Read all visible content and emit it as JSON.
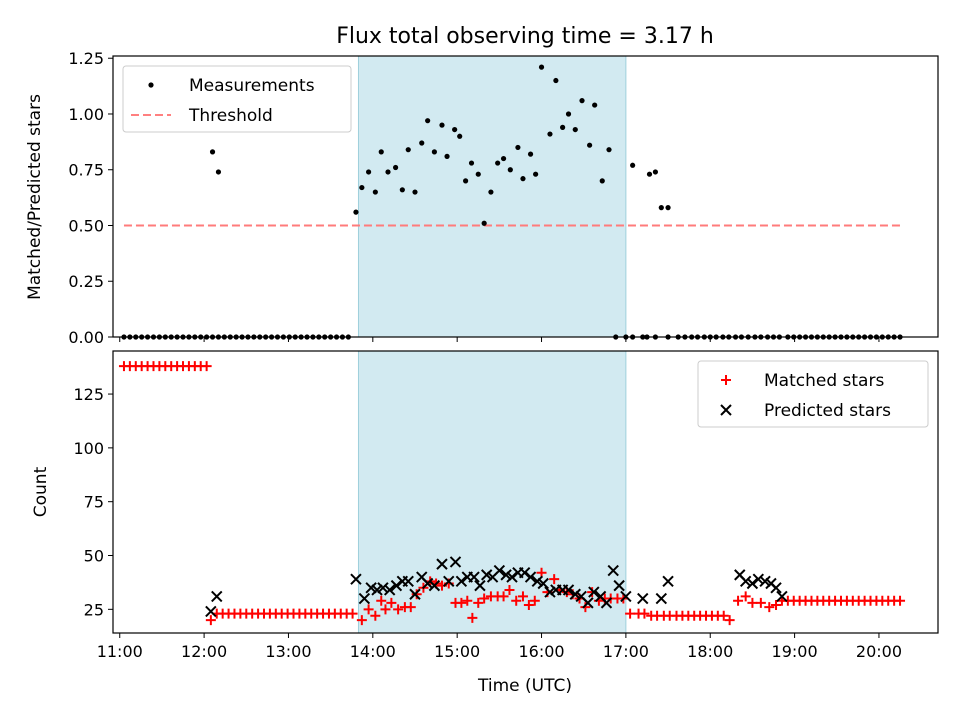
{
  "chart_data": [
    {
      "type": "scatter",
      "title": "Flux total observing time = 3.17 h",
      "ylabel": "Matched/Predicted stars",
      "xlabel": "",
      "xlim": [
        10.92,
        20.7
      ],
      "ylim": [
        0,
        1.26
      ],
      "yticks": [
        0.0,
        0.25,
        0.5,
        0.75,
        1.0,
        1.25
      ],
      "ytick_labels": [
        "0.00",
        "0.25",
        "0.50",
        "0.75",
        "1.00",
        "1.25"
      ],
      "shaded_region": [
        13.83,
        17.0
      ],
      "shade_color": "#add8e6",
      "legend_position": "upper left",
      "legend": [
        {
          "label": "Measurements",
          "marker": "dot",
          "color": "#000000"
        },
        {
          "label": "Threshold",
          "marker": "dashed-line",
          "color": "#ff8080"
        }
      ],
      "threshold": {
        "name": "Threshold",
        "value": 0.5,
        "x_range": [
          11.05,
          20.25
        ]
      },
      "series": [
        {
          "name": "Measurements",
          "marker": "dot",
          "color": "#000000",
          "x": [
            11.05,
            11.12,
            11.19,
            11.26,
            11.33,
            11.4,
            11.47,
            11.54,
            11.61,
            11.68,
            11.75,
            11.82,
            11.89,
            11.96,
            12.03,
            12.1,
            12.17,
            12.24,
            12.31,
            12.38,
            12.45,
            12.52,
            12.59,
            12.66,
            12.73,
            12.8,
            12.87,
            12.94,
            13.01,
            13.08,
            13.15,
            13.22,
            13.29,
            13.36,
            13.43,
            13.5,
            13.57,
            13.64,
            13.71,
            13.8,
            13.87,
            13.95,
            14.03,
            14.1,
            14.18,
            14.27,
            14.35,
            14.42,
            14.5,
            14.58,
            14.65,
            14.73,
            14.82,
            14.88,
            14.97,
            15.03,
            15.1,
            15.17,
            15.25,
            15.32,
            15.4,
            15.48,
            15.55,
            15.63,
            15.72,
            15.78,
            15.87,
            15.93,
            16.0,
            16.1,
            16.17,
            16.25,
            16.32,
            16.4,
            16.48,
            16.57,
            16.63,
            16.72,
            16.8,
            16.88,
            17.0,
            17.08,
            17.2,
            17.25,
            17.35,
            17.5,
            17.62,
            17.7,
            17.78,
            17.85,
            17.93,
            18.0,
            18.07,
            18.15,
            18.22,
            18.3,
            18.37,
            18.45,
            18.53,
            18.6,
            18.68,
            18.75,
            18.82,
            18.92,
            18.99,
            19.06,
            19.13,
            19.2,
            19.27,
            19.34,
            19.41,
            19.48,
            19.55,
            19.62,
            19.69,
            19.76,
            19.83,
            19.9,
            19.97,
            20.04,
            20.11,
            20.18,
            20.25,
            12.1,
            12.17,
            17.08,
            17.28,
            17.35,
            17.42,
            17.5
          ],
          "y": [
            0,
            0,
            0,
            0,
            0,
            0,
            0,
            0,
            0,
            0,
            0,
            0,
            0,
            0,
            0,
            0,
            0,
            0,
            0,
            0,
            0,
            0,
            0,
            0,
            0,
            0,
            0,
            0,
            0,
            0,
            0,
            0,
            0,
            0,
            0,
            0,
            0,
            0,
            0,
            0.56,
            0.67,
            0.74,
            0.65,
            0.83,
            0.74,
            0.76,
            0.66,
            0.84,
            0.65,
            0.87,
            0.97,
            0.83,
            0.95,
            0.81,
            0.93,
            0.9,
            0.7,
            0.78,
            0.73,
            0.51,
            0.65,
            0.78,
            0.8,
            0.75,
            0.85,
            0.71,
            0.82,
            0.73,
            1.21,
            0.91,
            1.15,
            0.94,
            1.0,
            0.93,
            1.06,
            0.86,
            1.04,
            0.7,
            0.84,
            0,
            0,
            0,
            0,
            0,
            0,
            0,
            0,
            0,
            0,
            0,
            0,
            0,
            0,
            0,
            0,
            0,
            0,
            0,
            0,
            0,
            0,
            0,
            0,
            0,
            0,
            0,
            0,
            0,
            0,
            0,
            0,
            0,
            0,
            0,
            0,
            0,
            0,
            0,
            0,
            0,
            0,
            0,
            0,
            0.83,
            0.74,
            0.77,
            0.73,
            0.74,
            0.58,
            0.58
          ]
        }
      ]
    },
    {
      "type": "scatter",
      "title": "",
      "xlabel": "Time (UTC)",
      "ylabel": "Count",
      "xlim": [
        10.92,
        20.7
      ],
      "ylim": [
        14,
        145
      ],
      "yticks": [
        25,
        50,
        75,
        100,
        125
      ],
      "ytick_labels": [
        "25",
        "50",
        "75",
        "100",
        "125"
      ],
      "xticks": [
        11,
        12,
        13,
        14,
        15,
        16,
        17,
        18,
        19,
        20
      ],
      "xtick_labels": [
        "11:00",
        "12:00",
        "13:00",
        "14:00",
        "15:00",
        "16:00",
        "17:00",
        "18:00",
        "19:00",
        "20:00"
      ],
      "shaded_region": [
        13.83,
        17.0
      ],
      "shade_color": "#add8e6",
      "legend_position": "upper right",
      "legend": [
        {
          "label": "Matched stars",
          "marker": "plus",
          "color": "#ff0000"
        },
        {
          "label": "Predicted stars",
          "marker": "x",
          "color": "#000000"
        }
      ],
      "series": [
        {
          "name": "Matched stars",
          "marker": "plus",
          "color": "#ff0000",
          "x": [
            11.05,
            11.12,
            11.19,
            11.26,
            11.33,
            11.4,
            11.47,
            11.54,
            11.61,
            11.68,
            11.75,
            11.82,
            11.89,
            11.96,
            12.03,
            12.08,
            12.15,
            12.22,
            12.29,
            12.36,
            12.43,
            12.5,
            12.57,
            12.64,
            12.71,
            12.78,
            12.85,
            12.92,
            12.99,
            13.06,
            13.13,
            13.2,
            13.27,
            13.34,
            13.41,
            13.48,
            13.55,
            13.62,
            13.69,
            13.76,
            13.87,
            13.95,
            14.03,
            14.1,
            14.15,
            14.22,
            14.3,
            14.38,
            14.45,
            14.52,
            14.6,
            14.68,
            14.75,
            14.82,
            14.9,
            14.98,
            15.05,
            15.12,
            15.18,
            15.25,
            15.32,
            15.4,
            15.48,
            15.55,
            15.62,
            15.7,
            15.78,
            15.85,
            15.92,
            16.0,
            16.07,
            16.15,
            16.22,
            16.3,
            16.37,
            16.45,
            16.52,
            16.6,
            16.68,
            16.75,
            16.82,
            16.9,
            16.97,
            17.05,
            17.15,
            17.22,
            17.3,
            17.37,
            17.45,
            17.52,
            17.6,
            17.67,
            17.74,
            17.81,
            17.88,
            17.95,
            18.02,
            18.09,
            18.16,
            18.23,
            18.33,
            18.42,
            18.5,
            18.6,
            18.7,
            18.78,
            18.85,
            18.92,
            18.99,
            19.06,
            19.13,
            19.2,
            19.27,
            19.34,
            19.41,
            19.48,
            19.55,
            19.62,
            19.69,
            19.76,
            19.83,
            19.9,
            19.97,
            20.04,
            20.11,
            20.18,
            20.25
          ],
          "y": [
            138,
            138,
            138,
            138,
            138,
            138,
            138,
            138,
            138,
            138,
            138,
            138,
            138,
            138,
            138,
            20,
            23,
            23,
            23,
            23,
            23,
            23,
            23,
            23,
            23,
            23,
            23,
            23,
            23,
            23,
            23,
            23,
            23,
            23,
            23,
            23,
            23,
            23,
            23,
            23,
            20,
            25,
            22,
            29,
            25,
            28,
            25,
            26,
            26,
            32,
            35,
            38,
            37,
            36,
            37,
            28,
            28,
            29,
            21,
            28,
            30,
            31,
            31,
            31,
            34,
            29,
            31,
            27,
            29,
            42,
            33,
            39,
            34,
            33,
            32,
            30,
            26,
            33,
            29,
            30,
            30,
            30,
            30,
            23,
            23,
            23,
            22,
            22,
            22,
            22,
            22,
            22,
            22,
            22,
            22,
            22,
            22,
            22,
            22,
            20,
            29,
            31,
            28,
            28,
            26,
            27,
            29,
            29,
            29,
            29,
            29,
            29,
            29,
            29,
            29,
            29,
            29,
            29,
            29,
            29,
            29,
            29,
            29,
            29,
            29,
            29,
            29
          ]
        },
        {
          "name": "Predicted stars",
          "marker": "x",
          "color": "#000000",
          "x": [
            12.08,
            12.15,
            13.8,
            13.9,
            13.98,
            14.05,
            14.12,
            14.2,
            14.28,
            14.35,
            14.42,
            14.5,
            14.58,
            14.65,
            14.73,
            14.82,
            14.9,
            14.98,
            15.05,
            15.12,
            15.2,
            15.27,
            15.35,
            15.42,
            15.5,
            15.58,
            15.65,
            15.72,
            15.8,
            15.87,
            15.95,
            16.02,
            16.1,
            16.17,
            16.25,
            16.32,
            16.4,
            16.47,
            16.55,
            16.62,
            16.7,
            16.77,
            16.85,
            16.92,
            17.0,
            17.2,
            17.42,
            17.5,
            18.35,
            18.42,
            18.5,
            18.57,
            18.65,
            18.72,
            18.78,
            18.85
          ],
          "y": [
            24,
            31,
            39,
            30,
            35,
            34,
            35,
            34,
            36,
            38,
            38,
            32,
            40,
            37,
            36,
            46,
            38,
            47,
            38,
            40,
            40,
            36,
            41,
            40,
            43,
            41,
            40,
            42,
            42,
            40,
            38,
            37,
            33,
            34,
            34,
            34,
            32,
            31,
            28,
            33,
            31,
            28,
            43,
            36,
            31,
            30,
            30,
            38,
            41,
            38,
            37,
            39,
            38,
            37,
            35,
            31
          ]
        }
      ]
    }
  ]
}
